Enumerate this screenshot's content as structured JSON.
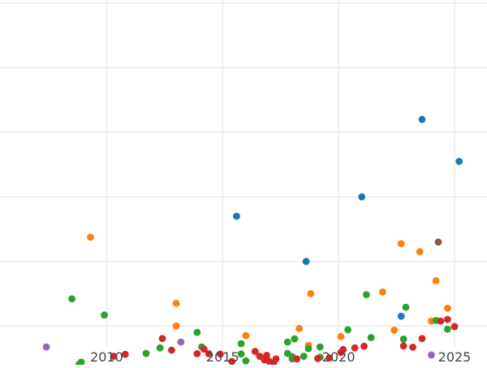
{
  "chart_data": {
    "type": "scatter",
    "title": "",
    "xlabel": "",
    "ylabel": "",
    "xlim": [
      2005.4,
      2026.4
    ],
    "ylim": [
      -0.65,
      10.1
    ],
    "x_ticks": [
      2010,
      2015,
      2020,
      2025
    ],
    "x_tick_labels": [
      "2010",
      "2015",
      "2020",
      "2025"
    ],
    "y_gridlines": [
      0,
      2,
      4,
      6,
      8,
      10
    ],
    "grid": true,
    "legend": "none",
    "series": [
      {
        "color": "#1f77b4",
        "points": [
          {
            "x": 2015.6,
            "y": 3.4
          },
          {
            "x": 2018.6,
            "y": 2.0
          },
          {
            "x": 2021.0,
            "y": 4.0
          },
          {
            "x": 2022.7,
            "y": 0.3
          },
          {
            "x": 2023.6,
            "y": 6.4
          },
          {
            "x": 2025.2,
            "y": 5.1
          }
        ]
      },
      {
        "color": "#ff7f0e",
        "points": [
          {
            "x": 2009.3,
            "y": 2.75
          },
          {
            "x": 2013.0,
            "y": 0.0
          },
          {
            "x": 2013.0,
            "y": 0.7
          },
          {
            "x": 2016.0,
            "y": -0.3
          },
          {
            "x": 2018.3,
            "y": -0.08
          },
          {
            "x": 2018.7,
            "y": -0.6
          },
          {
            "x": 2018.8,
            "y": 1.0
          },
          {
            "x": 2020.1,
            "y": -0.33
          },
          {
            "x": 2021.9,
            "y": 1.05
          },
          {
            "x": 2022.4,
            "y": -0.13
          },
          {
            "x": 2022.7,
            "y": 2.55
          },
          {
            "x": 2023.5,
            "y": 2.3
          },
          {
            "x": 2024.0,
            "y": 0.15
          },
          {
            "x": 2024.2,
            "y": 1.4
          },
          {
            "x": 2024.7,
            "y": 0.55
          }
        ]
      },
      {
        "color": "#2ca02c",
        "points": [
          {
            "x": 2008.5,
            "y": 0.84
          },
          {
            "x": 2008.8,
            "y": -1.2
          },
          {
            "x": 2008.9,
            "y": -1.12
          },
          {
            "x": 2009.9,
            "y": 0.34
          },
          {
            "x": 2011.7,
            "y": -0.85
          },
          {
            "x": 2012.3,
            "y": -0.68
          },
          {
            "x": 2013.9,
            "y": -0.2
          },
          {
            "x": 2014.1,
            "y": -0.65
          },
          {
            "x": 2015.8,
            "y": -0.55
          },
          {
            "x": 2015.8,
            "y": -0.87
          },
          {
            "x": 2016.0,
            "y": -1.08
          },
          {
            "x": 2017.8,
            "y": -0.5
          },
          {
            "x": 2017.8,
            "y": -0.85
          },
          {
            "x": 2018.0,
            "y": -0.95
          },
          {
            "x": 2018.0,
            "y": -1.02
          },
          {
            "x": 2018.1,
            "y": -0.4
          },
          {
            "x": 2018.5,
            "y": -0.94
          },
          {
            "x": 2018.7,
            "y": -0.7
          },
          {
            "x": 2019.2,
            "y": -0.65
          },
          {
            "x": 2019.2,
            "y": -0.97
          },
          {
            "x": 2020.4,
            "y": -0.12
          },
          {
            "x": 2021.2,
            "y": 0.97
          },
          {
            "x": 2021.4,
            "y": -0.36
          },
          {
            "x": 2022.8,
            "y": -0.41
          },
          {
            "x": 2022.9,
            "y": 0.58
          },
          {
            "x": 2024.2,
            "y": 0.17
          },
          {
            "x": 2024.7,
            "y": -0.1
          }
        ]
      },
      {
        "color": "#d62728",
        "points": [
          {
            "x": 2010.3,
            "y": -0.94
          },
          {
            "x": 2010.8,
            "y": -0.88
          },
          {
            "x": 2012.4,
            "y": -0.39
          },
          {
            "x": 2012.8,
            "y": -0.75
          },
          {
            "x": 2013.9,
            "y": -0.86
          },
          {
            "x": 2014.2,
            "y": -0.72
          },
          {
            "x": 2014.4,
            "y": -0.86
          },
          {
            "x": 2014.9,
            "y": -0.87
          },
          {
            "x": 2015.4,
            "y": -1.1
          },
          {
            "x": 2016.4,
            "y": -0.79
          },
          {
            "x": 2016.6,
            "y": -0.94
          },
          {
            "x": 2016.8,
            "y": -1.05
          },
          {
            "x": 2016.9,
            "y": -0.91
          },
          {
            "x": 2017.0,
            "y": -1.09
          },
          {
            "x": 2017.2,
            "y": -1.15
          },
          {
            "x": 2017.3,
            "y": -1.02
          },
          {
            "x": 2018.2,
            "y": -1.02
          },
          {
            "x": 2019.1,
            "y": -1.01
          },
          {
            "x": 2019.6,
            "y": -0.99
          },
          {
            "x": 2020.1,
            "y": -0.82
          },
          {
            "x": 2020.2,
            "y": -0.73
          },
          {
            "x": 2020.7,
            "y": -0.68
          },
          {
            "x": 2021.1,
            "y": -0.63
          },
          {
            "x": 2022.8,
            "y": -0.62
          },
          {
            "x": 2023.2,
            "y": -0.66
          },
          {
            "x": 2023.6,
            "y": -0.39
          },
          {
            "x": 2024.4,
            "y": 0.15
          },
          {
            "x": 2024.7,
            "y": 0.2
          },
          {
            "x": 2025.0,
            "y": -0.02
          }
        ]
      },
      {
        "color": "#9467bd",
        "points": [
          {
            "x": 2007.4,
            "y": -0.65
          },
          {
            "x": 2013.2,
            "y": -0.5
          },
          {
            "x": 2024.0,
            "y": -0.9
          }
        ]
      },
      {
        "color": "#8c564b",
        "points": [
          {
            "x": 2024.3,
            "y": 2.6
          }
        ]
      }
    ]
  }
}
